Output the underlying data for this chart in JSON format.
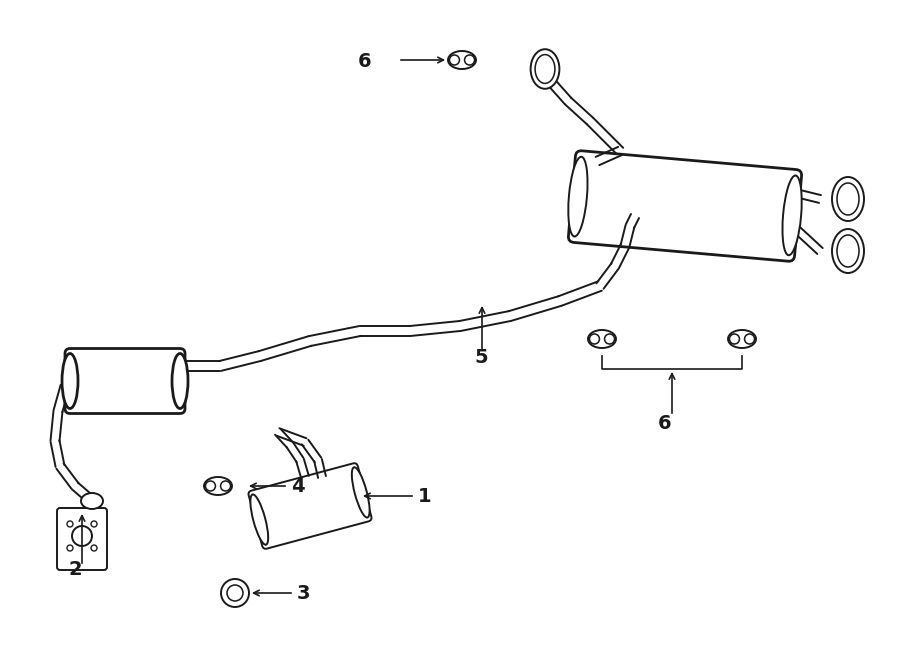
{
  "background_color": "#ffffff",
  "line_color": "#1a1a1a",
  "text_color": "#1a1a1a",
  "fig_width": 9.0,
  "fig_height": 6.61,
  "lw": 1.4,
  "lw_thick": 2.0
}
